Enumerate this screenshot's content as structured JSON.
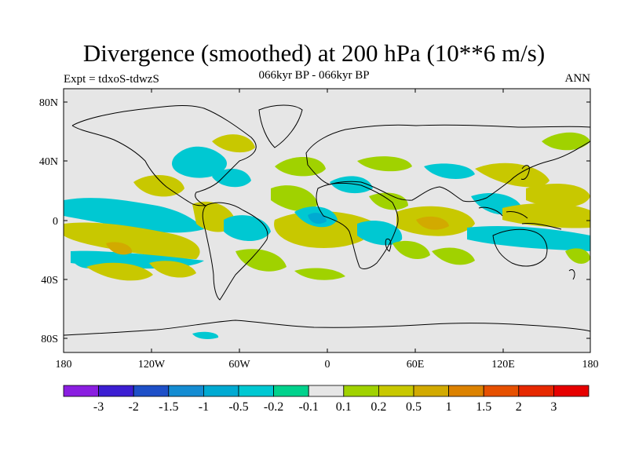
{
  "header": {
    "title": "Divergence (smoothed) at 200 hPa (10**6 m/s)",
    "subtitle": "066kyr BP - 066kyr BP",
    "left_label": "Expt = tdxoS-tdwzS",
    "right_label": "ANN"
  },
  "map": {
    "lat_ticks": [
      "80N",
      "40N",
      "0",
      "40S",
      "80S"
    ],
    "lon_ticks": [
      "180",
      "120W",
      "60W",
      "0",
      "60E",
      "120E",
      "180"
    ],
    "background_color": "#e6e6e6"
  },
  "colorbar": {
    "labels": [
      "-3",
      "-2",
      "-1.5",
      "-1",
      "-0.5",
      "-0.2",
      "-0.1",
      "0.1",
      "0.2",
      "0.5",
      "1",
      "1.5",
      "2",
      "3"
    ],
    "colors": [
      "#8a1ee0",
      "#3c1ed2",
      "#1e50c8",
      "#148cd2",
      "#00aad2",
      "#00c8d2",
      "#00d28c",
      "#e6e6e6",
      "#a0d200",
      "#c8c800",
      "#d2aa00",
      "#dc8200",
      "#e65000",
      "#e62800",
      "#e60000"
    ]
  }
}
